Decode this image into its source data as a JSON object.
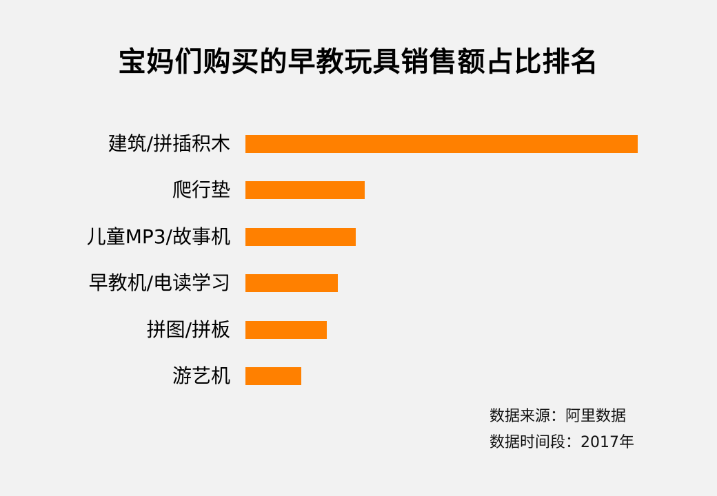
{
  "chart_data": {
    "type": "bar",
    "orientation": "horizontal",
    "title": "宝妈们购买的早教玩具销售额占比排名",
    "categories": [
      "建筑/拼插积木",
      "爬行垫",
      "儿童MP3/故事机",
      "早教机/电读学习",
      "拼图/拼板",
      "游艺机"
    ],
    "values": [
      100,
      30.4,
      28.2,
      23.6,
      20.8,
      14.2
    ],
    "xlabel": "",
    "ylabel": "",
    "xlim": [
      0,
      100
    ],
    "grid": false,
    "bar_color": "#ff8000"
  },
  "notes": {
    "source": "数据来源：阿里数据",
    "period": "数据时间段：2017年"
  }
}
